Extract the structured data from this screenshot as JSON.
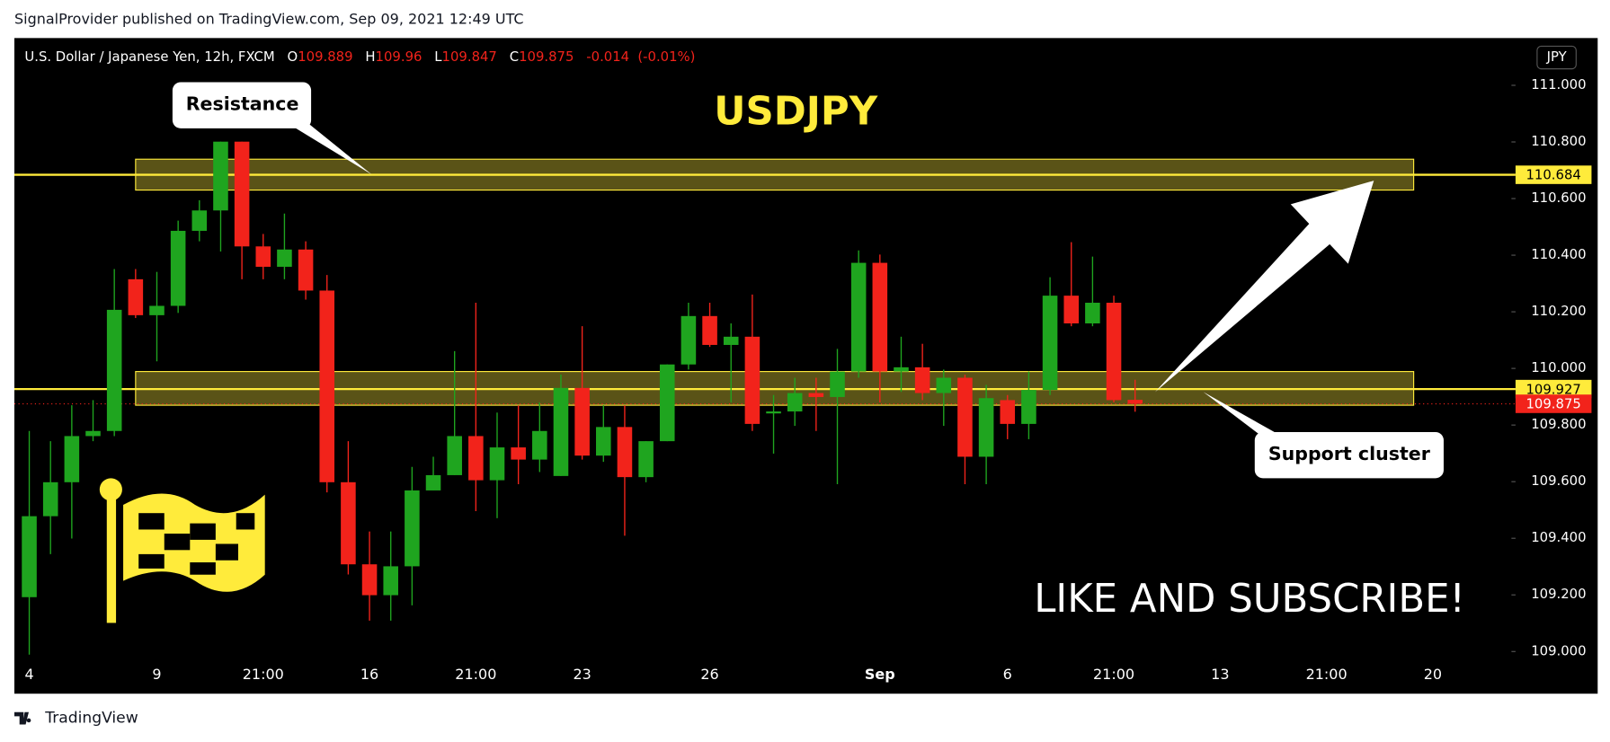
{
  "header": "SignalProvider published on TradingView.com, Sep 09, 2021 12:49 UTC",
  "footer": "TradingView",
  "chart_data": {
    "type": "candlestick",
    "symbol": "U.S. Dollar / Japanese Yen, 12h, FXCM",
    "legend_labels": [
      "O",
      "H",
      "L",
      "C"
    ],
    "change": -0.014,
    "change_percent_label": "(-0.01%)",
    "currency": "JPY",
    "title": "USDJPY",
    "annotations": [
      "Resistance",
      "Support cluster",
      "LIKE AND SUBSCRIBE!"
    ],
    "up_color": "#1fa51f",
    "down_color": "#f2231b",
    "open": [
      109.192,
      109.478,
      109.598,
      109.761,
      109.779,
      110.315,
      110.188,
      110.221,
      110.486,
      110.558,
      110.801,
      110.431,
      110.359,
      110.42,
      110.275,
      109.598,
      109.308,
      109.199,
      109.301,
      109.569,
      109.623,
      109.761,
      109.605,
      109.721,
      109.678,
      109.62,
      109.931,
      109.692,
      109.793,
      109.616,
      109.743,
      110.014,
      110.185,
      110.083,
      110.112,
      109.841,
      109.848,
      109.913,
      109.899,
      109.989,
      110.373,
      109.989,
      110.004,
      109.913,
      109.967,
      109.688,
      109.888,
      109.804,
      109.924,
      110.257,
      110.159,
      110.232,
      109.889
    ],
    "high": [
      109.779,
      109.743,
      109.87,
      109.888,
      110.351,
      110.351,
      110.341,
      110.522,
      110.594,
      110.801,
      110.801,
      110.475,
      110.547,
      110.449,
      110.33,
      109.743,
      109.424,
      109.424,
      109.652,
      109.688,
      110.061,
      110.232,
      109.844,
      109.87,
      109.88,
      109.978,
      110.149,
      109.87,
      109.87,
      109.743,
      110.014,
      110.232,
      110.232,
      110.159,
      110.261,
      109.906,
      109.967,
      109.967,
      110.069,
      110.417,
      110.402,
      110.112,
      110.087,
      109.996,
      109.978,
      109.942,
      109.906,
      109.989,
      110.322,
      110.446,
      110.395,
      110.257,
      109.96
    ],
    "low": [
      108.989,
      109.344,
      109.399,
      109.743,
      109.761,
      110.178,
      110.025,
      110.196,
      110.449,
      110.413,
      110.315,
      110.315,
      110.315,
      110.243,
      109.562,
      109.272,
      109.109,
      109.109,
      109.163,
      109.569,
      109.623,
      109.496,
      109.471,
      109.591,
      109.634,
      109.62,
      109.678,
      109.67,
      109.409,
      109.598,
      109.743,
      109.996,
      110.076,
      109.88,
      109.779,
      109.699,
      109.797,
      109.779,
      109.591,
      109.967,
      109.88,
      109.917,
      109.888,
      109.797,
      109.591,
      109.591,
      109.75,
      109.75,
      109.906,
      110.149,
      110.149,
      109.88,
      109.847
    ],
    "close": [
      109.478,
      109.598,
      109.761,
      109.779,
      110.207,
      110.188,
      110.221,
      110.486,
      110.558,
      110.801,
      110.431,
      110.359,
      110.42,
      110.275,
      109.598,
      109.308,
      109.199,
      109.301,
      109.569,
      109.623,
      109.761,
      109.605,
      109.721,
      109.678,
      109.779,
      109.931,
      109.692,
      109.793,
      109.616,
      109.743,
      110.014,
      110.185,
      110.083,
      110.112,
      109.804,
      109.848,
      109.913,
      109.899,
      109.989,
      110.373,
      109.989,
      110.004,
      109.913,
      109.967,
      109.688,
      109.895,
      109.804,
      109.924,
      110.257,
      110.159,
      110.232,
      109.888,
      109.875
    ],
    "xlim": [
      -0.7,
      69.6
    ],
    "xticks": [
      {
        "value": 0,
        "label": "4"
      },
      {
        "value": 6,
        "label": "9"
      },
      {
        "value": 11,
        "label": "21:00"
      },
      {
        "value": 16,
        "label": "16"
      },
      {
        "value": 21,
        "label": "21:00"
      },
      {
        "value": 26,
        "label": "23"
      },
      {
        "value": 32,
        "label": "26"
      },
      {
        "value": 40,
        "label": "Sep"
      },
      {
        "value": 46,
        "label": "6"
      },
      {
        "value": 51,
        "label": "21:00"
      },
      {
        "value": 56,
        "label": "13"
      },
      {
        "value": 61,
        "label": "21:00"
      },
      {
        "value": 66,
        "label": "20"
      }
    ],
    "ylim": [
      108.851,
      111.167
    ],
    "yticks": [
      {
        "value": 109,
        "label": "109.000"
      },
      {
        "value": 109.2,
        "label": "109.200"
      },
      {
        "value": 109.4,
        "label": "109.400"
      },
      {
        "value": 109.6,
        "label": "109.600"
      },
      {
        "value": 109.8,
        "label": "109.800"
      },
      {
        "value": 110,
        "label": "110.000"
      },
      {
        "value": 110.2,
        "label": "110.200"
      },
      {
        "value": 110.4,
        "label": "110.400"
      },
      {
        "value": 110.6,
        "label": "110.600"
      },
      {
        "value": 110.8,
        "label": "110.800"
      },
      {
        "value": 111,
        "label": "111.000"
      }
    ],
    "zones": [
      {
        "x": [
          5,
          65.1
        ],
        "y": [
          110.63,
          110.739
        ]
      },
      {
        "x": [
          5,
          65.1
        ],
        "y": [
          109.87,
          109.989
        ]
      }
    ],
    "price_lines": [
      {
        "value": 110.684,
        "color": "#ffeb3b",
        "style": "solid"
      },
      {
        "value": 109.927,
        "color": "#ffeb3b",
        "style": "solid"
      },
      {
        "value": 109.875,
        "color": "#f2231b",
        "style": "dotted"
      }
    ]
  }
}
